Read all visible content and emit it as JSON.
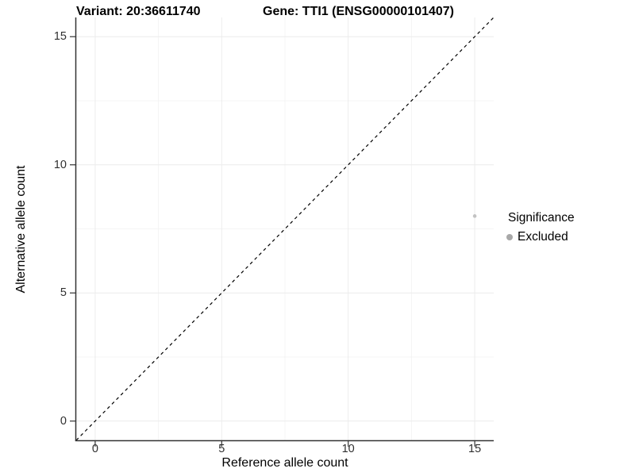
{
  "titles": {
    "variant": "Variant: 20:36611740",
    "gene": "Gene: TTI1 (ENSG00000101407)"
  },
  "chart_data": {
    "type": "scatter",
    "title_left": "Variant: 20:36611740",
    "title_right": "Gene: TTI1 (ENSG00000101407)",
    "xlabel": "Reference allele count",
    "ylabel": "Alternative allele count",
    "xlim": [
      -0.75,
      15.75
    ],
    "ylim": [
      -0.75,
      15.75
    ],
    "x_ticks": [
      0,
      5,
      10,
      15
    ],
    "y_ticks": [
      0,
      5,
      10,
      15
    ],
    "x_minor_ticks": [
      2.5,
      7.5,
      12.5
    ],
    "y_minor_ticks": [
      2.5,
      7.5,
      12.5
    ],
    "grid": "major-and-minor",
    "points": [
      {
        "x": 15,
        "y": 8,
        "series": "Excluded"
      }
    ],
    "reference_line": {
      "kind": "identity",
      "slope": 1,
      "intercept": 0,
      "style": "dashed"
    },
    "legend": {
      "title": "Significance",
      "position": "right",
      "items": [
        {
          "label": "Excluded",
          "marker": "circle",
          "color": "#a8a8a8"
        }
      ]
    },
    "colors": {
      "background": "#ffffff",
      "grid_major": "#ececec",
      "grid_minor": "#f4f4f4",
      "axis_line": "#333333",
      "tick_text": "#303030",
      "title_text": "#000000",
      "point": "#c3c3c3",
      "reference_line": "#000000"
    }
  }
}
